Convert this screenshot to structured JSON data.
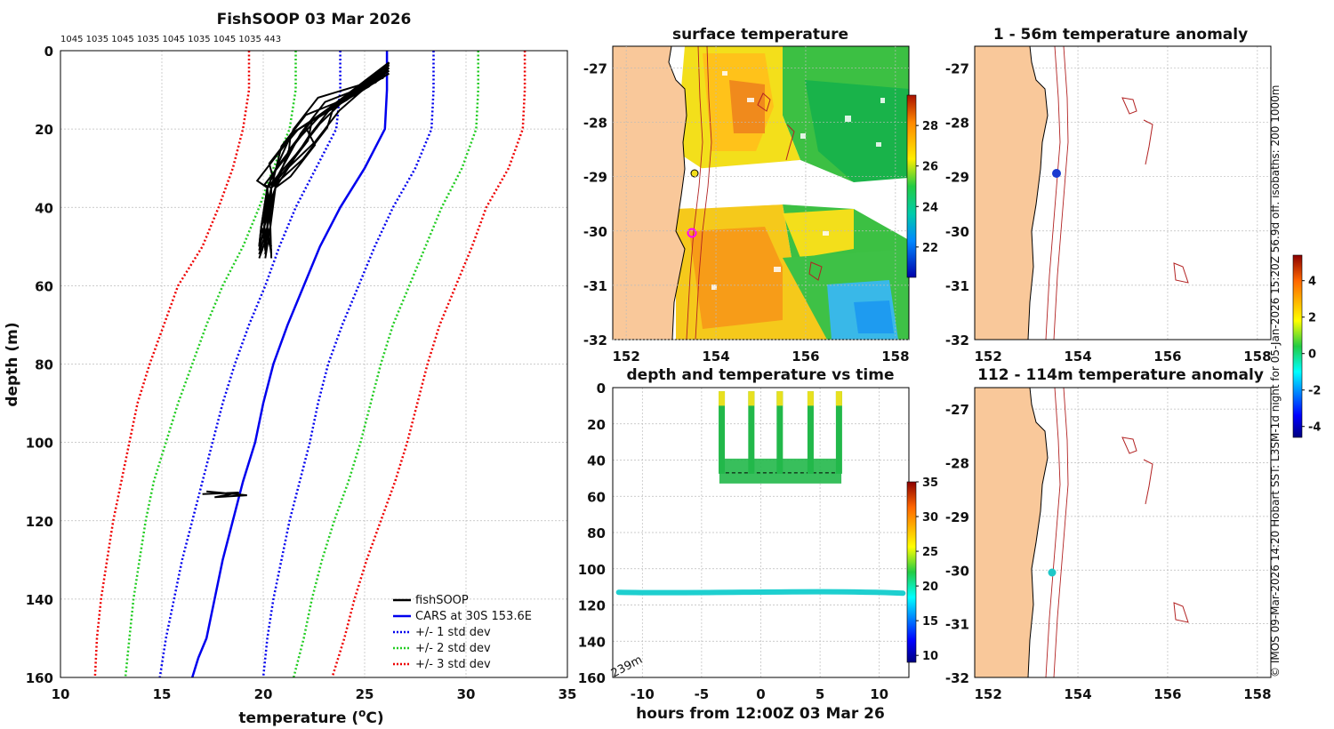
{
  "chart_data": [
    {
      "type": "line",
      "title": "FishSOOP 03 Mar 2026",
      "top_label": "1045 1035 1045 1035 1045 1035 1045 1035 443",
      "xlabel": "temperature (",
      "xlabel_sup": "o",
      "xlabel_unit": "C)",
      "ylabel": "depth (m)",
      "xlim": [
        10,
        35
      ],
      "ylim": [
        0,
        160
      ],
      "y_inverted": true,
      "xticks": [
        10,
        15,
        20,
        25,
        30,
        35
      ],
      "yticks": [
        0,
        20,
        40,
        60,
        80,
        100,
        120,
        140,
        160
      ],
      "legend": [
        "fishSOOP",
        "CARS at 30S 153.6E",
        "+/- 1 std dev",
        "+/- 2 std dev",
        "+/- 3 std dev"
      ],
      "series": [
        {
          "name": "CARS mean",
          "color": "#0000ee",
          "style": "solid",
          "x": [
            26.1,
            26.1,
            26.0,
            25.0,
            23.8,
            22.8,
            22.0,
            21.2,
            20.5,
            20.0,
            19.6,
            19.0,
            18.5,
            18.0,
            17.6,
            17.2,
            16.8,
            16.5
          ],
          "y": [
            0,
            10,
            20,
            30,
            40,
            50,
            60,
            70,
            80,
            90,
            100,
            110,
            120,
            130,
            140,
            150,
            155,
            160
          ]
        },
        {
          "name": "+1 std",
          "color": "#0000ee",
          "style": "dot",
          "x": [
            28.4,
            28.4,
            28.3,
            27.5,
            26.4,
            25.5,
            24.7,
            23.9,
            23.2,
            22.7,
            22.3,
            21.8,
            21.3,
            20.9,
            20.5,
            20.2,
            20.0
          ],
          "y": [
            0,
            10,
            20,
            30,
            40,
            50,
            60,
            70,
            80,
            90,
            100,
            110,
            120,
            130,
            140,
            150,
            160
          ]
        },
        {
          "name": "-1 std",
          "color": "#0000ee",
          "style": "dot",
          "x": [
            23.8,
            23.8,
            23.6,
            22.6,
            21.6,
            20.8,
            20.1,
            19.3,
            18.6,
            18.0,
            17.5,
            17.0,
            16.5,
            16.0,
            15.6,
            15.2,
            14.9
          ],
          "y": [
            0,
            10,
            20,
            30,
            40,
            50,
            60,
            70,
            80,
            90,
            100,
            110,
            120,
            130,
            140,
            150,
            160
          ]
        },
        {
          "name": "+2 std",
          "color": "#22cc22",
          "style": "dot",
          "x": [
            30.6,
            30.6,
            30.5,
            29.8,
            28.8,
            28.0,
            27.2,
            26.4,
            25.8,
            25.3,
            24.8,
            24.2,
            23.5,
            22.9,
            22.4,
            22.0,
            21.5
          ],
          "y": [
            0,
            10,
            20,
            30,
            40,
            50,
            60,
            70,
            80,
            90,
            100,
            110,
            120,
            130,
            140,
            150,
            160
          ]
        },
        {
          "name": "-2 std",
          "color": "#22cc22",
          "style": "dot",
          "x": [
            21.6,
            21.6,
            21.3,
            20.5,
            19.8,
            19.0,
            18.0,
            17.2,
            16.5,
            15.8,
            15.2,
            14.6,
            14.2,
            13.9,
            13.6,
            13.4,
            13.2
          ],
          "y": [
            0,
            10,
            20,
            30,
            40,
            50,
            60,
            70,
            80,
            90,
            100,
            110,
            120,
            130,
            140,
            150,
            160
          ]
        },
        {
          "name": "+3 std",
          "color": "#ee0000",
          "style": "dot",
          "x": [
            32.9,
            32.9,
            32.8,
            32.1,
            31.0,
            30.3,
            29.5,
            28.7,
            28.1,
            27.6,
            27.1,
            26.5,
            25.8,
            25.1,
            24.5,
            24.0,
            23.4
          ],
          "y": [
            0,
            10,
            20,
            30,
            40,
            50,
            60,
            70,
            80,
            90,
            100,
            110,
            120,
            130,
            140,
            150,
            160
          ]
        },
        {
          "name": "-3 std",
          "color": "#ee0000",
          "style": "dot",
          "x": [
            19.3,
            19.3,
            19.0,
            18.5,
            17.8,
            17.0,
            15.8,
            15.1,
            14.4,
            13.8,
            13.4,
            13.0,
            12.6,
            12.3,
            12.0,
            11.8,
            11.7
          ],
          "y": [
            0,
            10,
            20,
            30,
            40,
            50,
            60,
            70,
            80,
            90,
            100,
            110,
            120,
            130,
            140,
            150,
            160
          ]
        }
      ]
    },
    {
      "type": "heatmap",
      "title": "surface temperature",
      "x_ticks": [
        152,
        154,
        156,
        158
      ],
      "y_ticks": [
        -27,
        -28,
        -29,
        -30,
        -31,
        -32
      ],
      "colorbar_ticks": [
        22,
        24,
        26,
        28
      ]
    },
    {
      "type": "scatter",
      "title": "depth and temperature vs time",
      "xlabel": "hours from 12:00Z 03 Mar 26",
      "xlim": [
        -12.5,
        12.5
      ],
      "ylim": [
        0,
        160
      ],
      "y_inverted": true,
      "xticks": [
        -10,
        -5,
        0,
        5,
        10
      ],
      "yticks": [
        0,
        20,
        40,
        60,
        80,
        100,
        120,
        140,
        160
      ],
      "bottom_label": "239m",
      "colorbar_ticks": [
        10,
        15,
        20,
        25,
        30,
        35
      ],
      "deep_sensor_depth": 113,
      "shallow_sensor_mean_depth": 50
    },
    {
      "type": "heatmap",
      "title": "1 - 56m temperature anomaly",
      "x_ticks": [
        152,
        154,
        156,
        158
      ],
      "y_ticks": [
        -27,
        -28,
        -29,
        -30,
        -31,
        -32
      ]
    },
    {
      "type": "heatmap",
      "title": "112 - 114m temperature anomaly",
      "x_ticks": [
        152,
        154,
        156,
        158
      ],
      "y_ticks": [
        -27,
        -28,
        -29,
        -30,
        -31,
        -32
      ],
      "colorbar_ticks": [
        -4,
        -2,
        0,
        2,
        4
      ]
    }
  ],
  "side_caption": "© IMOS 09-Mar-2026 14:20 Hobart SST: L3SM-1d night for 05-Jan-2026 15:20Z 56.9d off. isobaths: 200  1000m",
  "colors": {
    "land": "#f9c89a",
    "cars": "#0000ee",
    "std2": "#22cc22",
    "std3": "#ee0000",
    "fish": "#000000",
    "isobath": "#b22222"
  }
}
